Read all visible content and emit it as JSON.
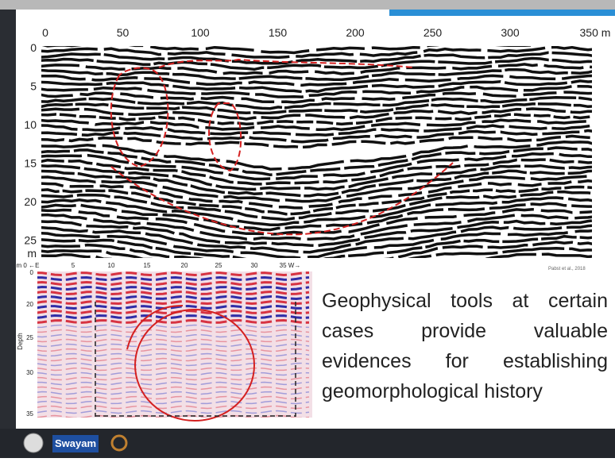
{
  "top_figure": {
    "x_ticks": [
      "0",
      "50",
      "100",
      "150",
      "200",
      "250",
      "300",
      "350 m"
    ],
    "y_ticks": [
      "0",
      "5",
      "10",
      "15",
      "20",
      "25",
      "m"
    ],
    "credit": "Pabst et al., 2018"
  },
  "bottom_figure": {
    "x_ticks": [
      "m 0 ←E",
      "5",
      "10",
      "15",
      "20",
      "25",
      "30",
      "35 W→"
    ],
    "y_ticks": [
      "0",
      "20",
      "25",
      "30",
      "35"
    ],
    "y_label": "Depth"
  },
  "body_text": "Geophysical tools at certain cases provide valuable evidences for establishing geomorphological history",
  "footer": {
    "logo_text": "Swayam"
  }
}
